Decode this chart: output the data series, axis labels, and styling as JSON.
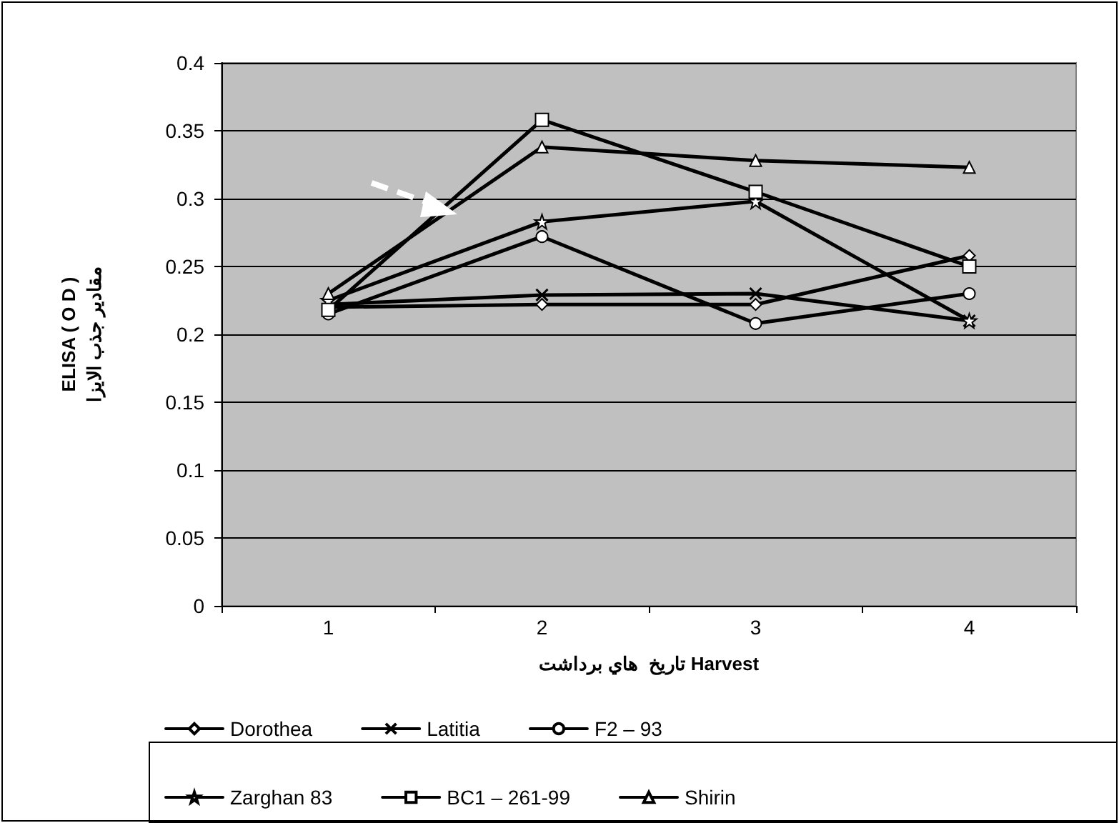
{
  "chart_data": {
    "type": "line",
    "xlabel": "تاریخ  هاي برداشت Harvest",
    "ylabel": "ELISA ( O D )\nمقادیر جذب الایزا",
    "categories": [
      "1",
      "2",
      "3",
      "4"
    ],
    "series": [
      {
        "name": "Dorothea",
        "color": "#000000",
        "marker": "diamond",
        "values": [
          0.22,
          0.222,
          0.222,
          0.258
        ]
      },
      {
        "name": "Latitia",
        "color": "#000000",
        "marker": "cross",
        "values": [
          0.222,
          0.229,
          0.23,
          0.21
        ]
      },
      {
        "name": "F2 – 93",
        "color": "#000000",
        "marker": "circle",
        "values": [
          0.215,
          0.272,
          0.208,
          0.23
        ]
      },
      {
        "name": "Zarghan 83",
        "color": "#000000",
        "marker": "star",
        "values": [
          0.225,
          0.283,
          0.298,
          0.21
        ]
      },
      {
        "name": "BC1 – 261-99",
        "color": "#000000",
        "marker": "square",
        "values": [
          0.218,
          0.358,
          0.305,
          0.25
        ]
      },
      {
        "name": "Shirin",
        "color": "#000000",
        "marker": "triangle",
        "values": [
          0.23,
          0.338,
          0.328,
          0.323
        ]
      }
    ],
    "ylim": [
      0,
      0.4
    ],
    "yticks": [
      0,
      0.05,
      0.1,
      0.15,
      0.2,
      0.25,
      0.3,
      0.35,
      0.4
    ],
    "grid": "y",
    "legend": "bottom",
    "line_style": "solid"
  }
}
